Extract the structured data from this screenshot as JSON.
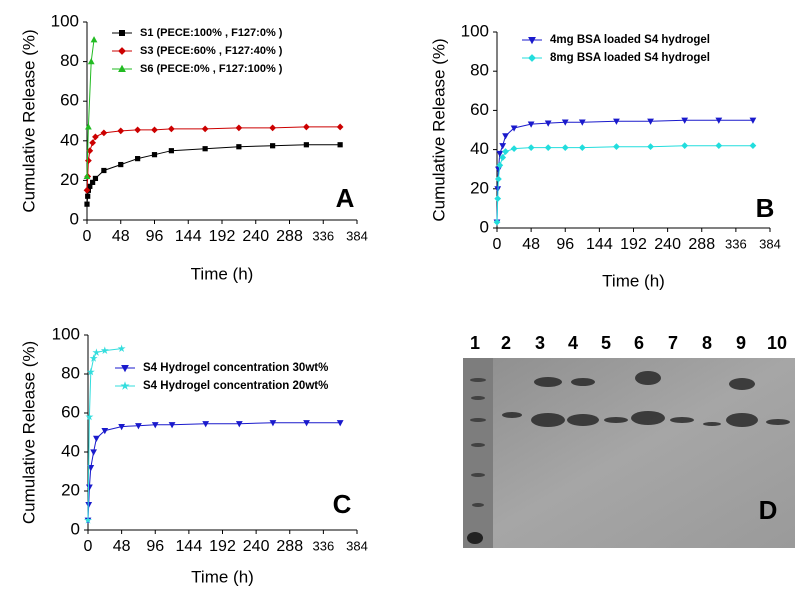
{
  "chart_data": [
    {
      "type": "line",
      "panel_label": "A",
      "xlabel": "Time (h)",
      "ylabel": "Cumulative Release (%)",
      "xlim": [
        0,
        384
      ],
      "xticks": [
        0,
        48,
        96,
        144,
        192,
        240,
        288,
        336,
        384
      ],
      "ylim": [
        0,
        100
      ],
      "yticks": [
        0,
        20,
        40,
        60,
        80,
        100
      ],
      "series": [
        {
          "name": "S1 (PECE:100% , F127:0% )",
          "color": "#000000",
          "marker": "square",
          "x": [
            0,
            1,
            2,
            4,
            8,
            12,
            24,
            48,
            72,
            96,
            120,
            168,
            216,
            264,
            312,
            360
          ],
          "values": [
            8,
            12,
            15,
            17,
            19,
            21,
            25,
            28,
            31,
            33,
            35,
            36,
            37,
            37.5,
            38,
            38
          ]
        },
        {
          "name": "S3 (PECE:60% , F127:40% )",
          "color": "#cc0000",
          "marker": "diamond",
          "x": [
            0,
            1,
            2,
            4,
            8,
            12,
            24,
            48,
            72,
            96,
            120,
            168,
            216,
            264,
            312,
            360
          ],
          "values": [
            15,
            22,
            30,
            35,
            39,
            42,
            44,
            45,
            45.5,
            45.5,
            46,
            46,
            46.5,
            46.5,
            47,
            47
          ]
        },
        {
          "name": "S6 (PECE:0% , F127:100% )",
          "color": "#22bb22",
          "marker": "triangle-up",
          "x": [
            0,
            2,
            6,
            10
          ],
          "values": [
            22,
            47,
            80,
            91
          ]
        }
      ]
    },
    {
      "type": "line",
      "panel_label": "B",
      "xlabel": "Time (h)",
      "ylabel": "Cumulative Release (%)",
      "xlim": [
        0,
        384
      ],
      "xticks": [
        0,
        48,
        96,
        144,
        192,
        240,
        288,
        336,
        384
      ],
      "ylim": [
        0,
        100
      ],
      "yticks": [
        0,
        20,
        40,
        60,
        80,
        100
      ],
      "series": [
        {
          "name": "4mg BSA loaded S4 hydrogel",
          "color": "#1a1acc",
          "marker": "triangle-down",
          "x": [
            0,
            1,
            2,
            4,
            8,
            12,
            24,
            48,
            72,
            96,
            120,
            168,
            216,
            264,
            312,
            360
          ],
          "values": [
            3,
            20,
            30,
            38,
            42,
            47,
            51,
            53,
            53.5,
            54,
            54,
            54.5,
            54.5,
            55,
            55,
            55
          ]
        },
        {
          "name": "8mg BSA loaded S4 hydrogel",
          "color": "#22dddd",
          "marker": "diamond",
          "x": [
            0,
            1,
            2,
            4,
            8,
            12,
            24,
            48,
            72,
            96,
            120,
            168,
            216,
            264,
            312,
            360
          ],
          "values": [
            3,
            15,
            25,
            32,
            36,
            39,
            40.5,
            41,
            41,
            41,
            41,
            41.5,
            41.5,
            42,
            42,
            42
          ]
        }
      ]
    },
    {
      "type": "line",
      "panel_label": "C",
      "xlabel": "Time (h)",
      "ylabel": "Cumulative Release (%)",
      "xlim": [
        0,
        384
      ],
      "xticks": [
        0,
        48,
        96,
        144,
        192,
        240,
        288,
        336,
        384
      ],
      "ylim": [
        0,
        100
      ],
      "yticks": [
        0,
        20,
        40,
        60,
        80,
        100
      ],
      "series": [
        {
          "name": "S4 Hydrogel concentration 30wt%",
          "color": "#1a1acc",
          "marker": "triangle-down",
          "x": [
            0,
            1,
            2,
            4,
            8,
            12,
            24,
            48,
            72,
            96,
            120,
            168,
            216,
            264,
            312,
            360
          ],
          "values": [
            5,
            13,
            22,
            32,
            40,
            47,
            51,
            53,
            53.5,
            54,
            54,
            54.5,
            54.5,
            55,
            55,
            55
          ]
        },
        {
          "name": "S4 Hydrogel concentration 20wt%",
          "color": "#33dddd",
          "marker": "star",
          "x": [
            0,
            2,
            4,
            8,
            12,
            24,
            48
          ],
          "values": [
            5,
            58,
            81,
            88,
            91,
            92,
            93
          ]
        }
      ]
    }
  ],
  "gel": {
    "lanes": [
      "1",
      "2",
      "3",
      "4",
      "5",
      "6",
      "7",
      "8",
      "9",
      "10"
    ],
    "label": "D"
  }
}
